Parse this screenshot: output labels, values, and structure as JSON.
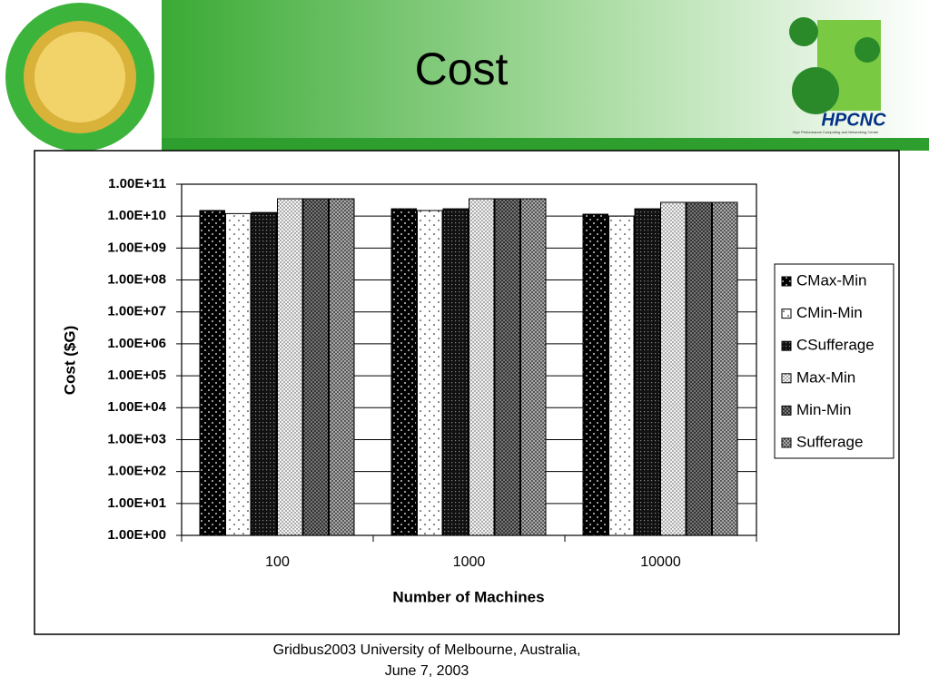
{
  "header": {
    "title": "Cost",
    "logo_text": "HPCNC",
    "logo_caption": "High Performance Computing and Networking Center"
  },
  "chart_data": {
    "type": "bar",
    "y_label": "Cost ($G)",
    "x_label": "Number of Machines",
    "categories": [
      "100",
      "1000",
      "10000"
    ],
    "log_scale": true,
    "grid": true,
    "legend": "right",
    "ylim": [
      1,
      100000000000
    ],
    "yticks": [
      {
        "value": 1,
        "label": "1.00E+00"
      },
      {
        "value": 10,
        "label": "1.00E+01"
      },
      {
        "value": 100,
        "label": "1.00E+02"
      },
      {
        "value": 1000,
        "label": "1.00E+03"
      },
      {
        "value": 10000,
        "label": "1.00E+04"
      },
      {
        "value": 100000,
        "label": "1.00E+05"
      },
      {
        "value": 1000000,
        "label": "1.00E+06"
      },
      {
        "value": 10000000,
        "label": "1.00E+07"
      },
      {
        "value": 100000000,
        "label": "1.00E+08"
      },
      {
        "value": 1000000000,
        "label": "1.00E+09"
      },
      {
        "value": 10000000000,
        "label": "1.00E+10"
      },
      {
        "value": 100000000000,
        "label": "1.00E+11"
      }
    ],
    "series": [
      {
        "name": "CMax-Min",
        "color": "#000000",
        "values": [
          15000000000,
          17000000000,
          11500000000
        ]
      },
      {
        "name": "CMin-Min",
        "color": "#ffffff",
        "values": [
          12000000000,
          15000000000,
          10000000000
        ]
      },
      {
        "name": "CSufferage",
        "color": "#111111",
        "values": [
          13000000000,
          17000000000,
          17000000000
        ]
      },
      {
        "name": "Max-Min",
        "color": "#f4f4f4",
        "values": [
          35000000000,
          35000000000,
          27000000000
        ]
      },
      {
        "name": "Min-Min",
        "color": "#777777",
        "values": [
          35000000000,
          35000000000,
          27000000000
        ]
      },
      {
        "name": "Sufferage",
        "color": "#bbbbbb",
        "values": [
          35000000000,
          35000000000,
          27000000000
        ]
      }
    ]
  },
  "footer": {
    "lines": [
      "Gridbus2003 University of Melbourne, Australia,",
      "June 7, 2003"
    ]
  }
}
